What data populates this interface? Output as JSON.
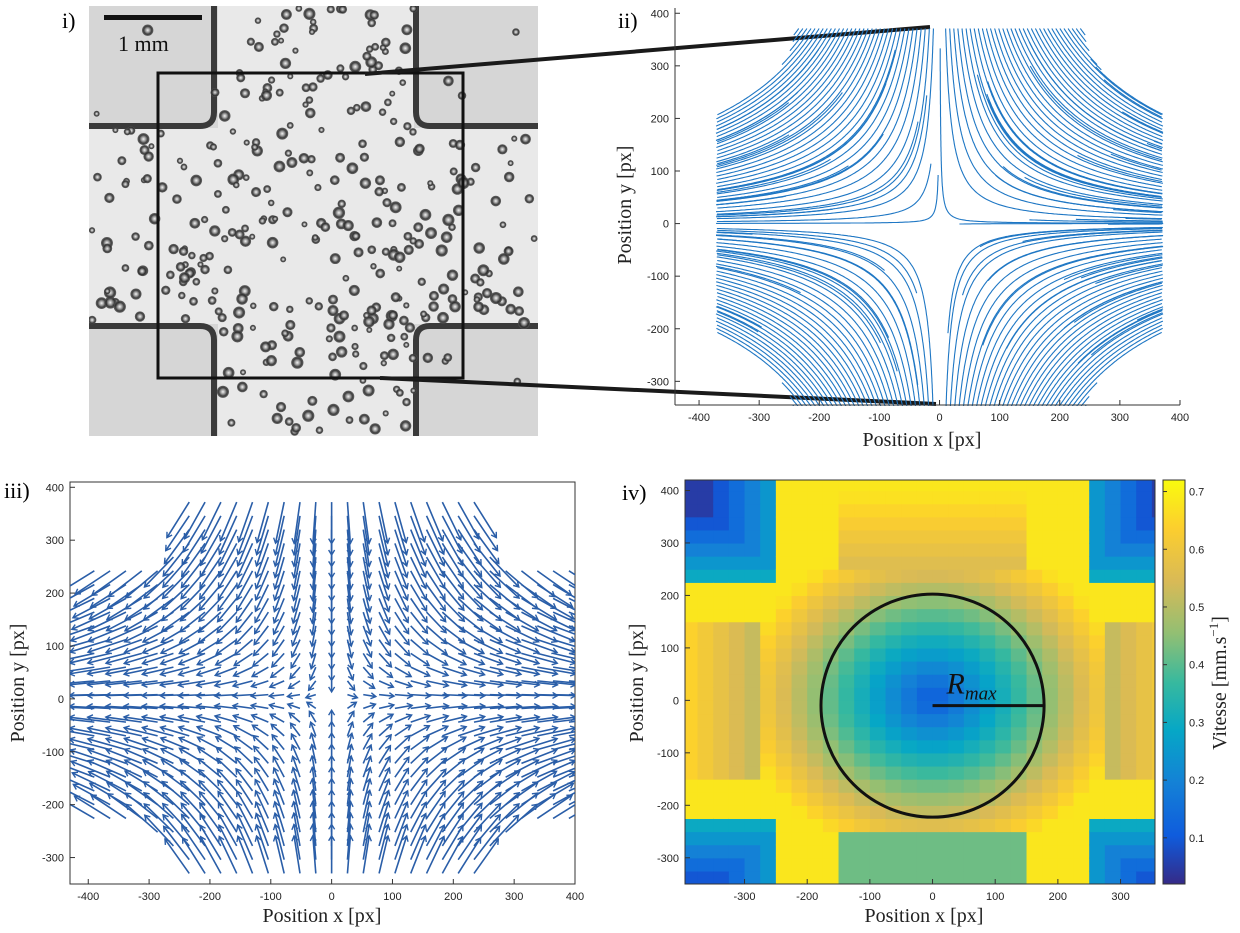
{
  "panels": {
    "i": {
      "label": "i)",
      "scalebar_label": "1 mm"
    },
    "ii": {
      "label": "ii)"
    },
    "iii": {
      "label": "iii)"
    },
    "iv": {
      "label": "iv)",
      "annotation": "R_max"
    }
  },
  "chart_data": [
    {
      "panel": "ii",
      "type": "line",
      "description_kind": "streamlines",
      "xlabel": "Position x [px]",
      "ylabel": "Position y [px]",
      "xlim": [
        -440,
        400
      ],
      "ylim": [
        -345,
        410
      ],
      "xticks": [
        -400,
        -300,
        -200,
        -100,
        0,
        100,
        200,
        300,
        400
      ],
      "yticks": [
        -300,
        -200,
        -100,
        0,
        100,
        200,
        300,
        400
      ],
      "line_color": "#1f77c4",
      "grid": false
    },
    {
      "panel": "iii",
      "type": "scatter",
      "description_kind": "quiver",
      "xlabel": "Position x [px]",
      "ylabel": "Position y [px]",
      "xlim": [
        -430,
        400
      ],
      "ylim": [
        -350,
        410
      ],
      "xticks": [
        -400,
        -300,
        -200,
        -100,
        0,
        100,
        200,
        300,
        400
      ],
      "yticks": [
        -300,
        -200,
        -100,
        0,
        100,
        200,
        300,
        400
      ],
      "arrow_color": "#2a5ea8",
      "grid": false
    },
    {
      "panel": "iv",
      "type": "heatmap",
      "xlabel": "Position x [px]",
      "ylabel": "Position y [px]",
      "colorbar_label": "Vitesse [mm.s^-1]",
      "xlim": [
        -395,
        355
      ],
      "ylim": [
        -350,
        420
      ],
      "xticks": [
        -300,
        -200,
        -100,
        0,
        100,
        200,
        300
      ],
      "yticks": [
        -300,
        -200,
        -100,
        0,
        100,
        200,
        300,
        400
      ],
      "clim": [
        0.02,
        0.72
      ],
      "cticks": [
        0.1,
        0.2,
        0.3,
        0.4,
        0.5,
        0.6,
        0.7
      ],
      "colormap": "parula",
      "circle_center": [
        0,
        -10
      ],
      "circle_radius": 178,
      "grid": false
    }
  ]
}
